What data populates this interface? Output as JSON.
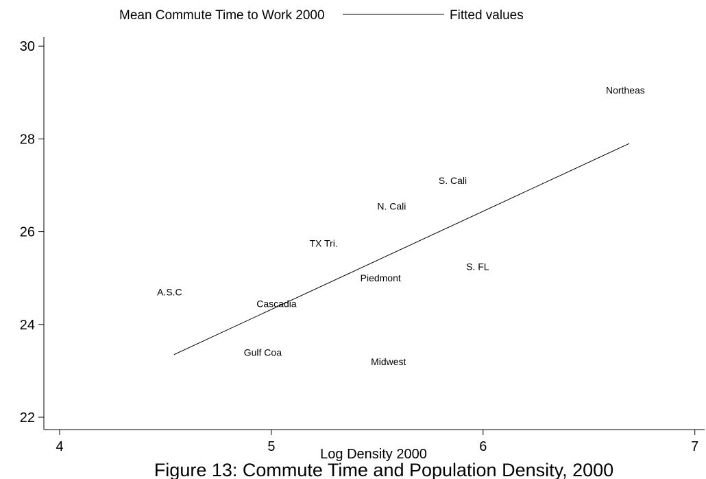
{
  "chart_data": {
    "type": "scatter",
    "xlabel": "Log Density 2000",
    "ylabel": "",
    "xlim": [
      3.9,
      7.05
    ],
    "ylim": [
      21.8,
      30.4
    ],
    "x_ticks": [
      4,
      5,
      6,
      7
    ],
    "y_ticks": [
      22,
      24,
      26,
      28,
      30
    ],
    "grid": false,
    "legend": {
      "placement": "top",
      "entries": [
        "Mean Commute Time to Work 2000",
        "Fitted values"
      ]
    },
    "points": [
      {
        "label": "Northeas",
        "x": 6.58,
        "y": 29.05
      },
      {
        "label": "S. Cali",
        "x": 5.79,
        "y": 27.1
      },
      {
        "label": "N. Cali",
        "x": 5.5,
        "y": 26.55
      },
      {
        "label": "TX Tri.",
        "x": 5.18,
        "y": 25.75
      },
      {
        "label": "S. FL",
        "x": 5.92,
        "y": 25.25
      },
      {
        "label": "Piedmont",
        "x": 5.42,
        "y": 25.0
      },
      {
        "label": "A.S.C",
        "x": 4.46,
        "y": 24.7
      },
      {
        "label": "Cascadia",
        "x": 4.93,
        "y": 24.45
      },
      {
        "label": "Gulf Coa",
        "x": 4.87,
        "y": 23.4
      },
      {
        "label": "Midwest",
        "x": 5.47,
        "y": 23.2
      }
    ],
    "fitted_line": {
      "x": [
        4.54,
        6.69
      ],
      "y": [
        23.35,
        27.9
      ]
    },
    "caption": "Figure 13: Commute Time and Population Density, 2000"
  }
}
